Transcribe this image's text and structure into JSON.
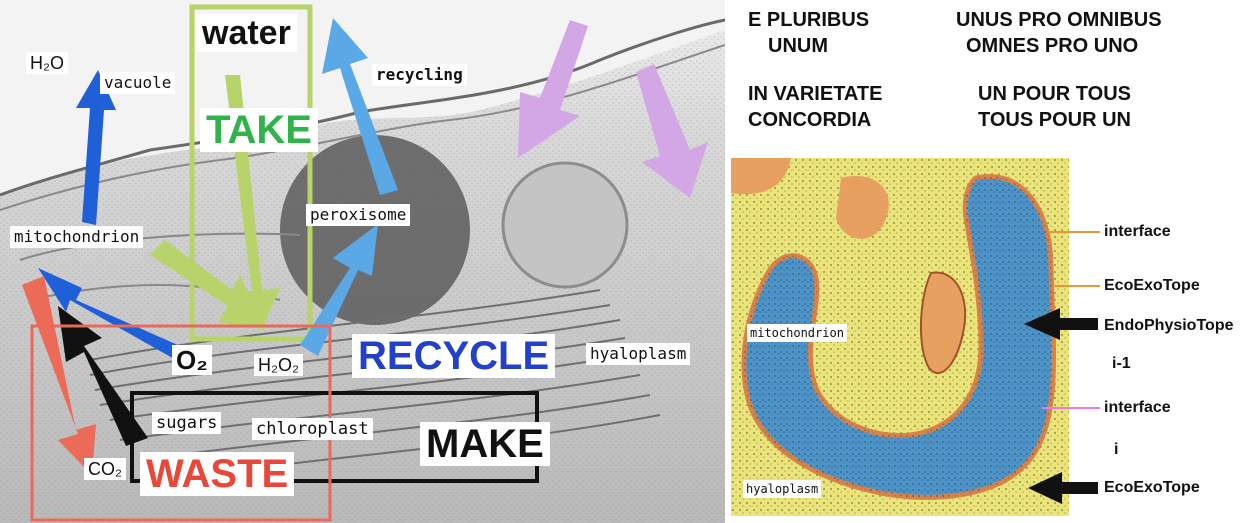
{
  "left_diagram": {
    "labels": {
      "h2o": "H₂O",
      "vacuole": "vacuole",
      "water": "water",
      "recycling": "recycling",
      "take": "TAKE",
      "mitochondrion": "mitochondrion",
      "peroxisome": "peroxisome",
      "o2": "O₂",
      "h2o2": "H₂O₂",
      "recycle": "RECYCLE",
      "hyaloplasm": "hyaloplasm",
      "sugars": "sugars",
      "chloroplast": "chloroplast",
      "make": "MAKE",
      "co2": "CO₂",
      "waste": "WASTE"
    },
    "colors": {
      "take": "#2fb34a",
      "recycle": "#2340c8",
      "waste": "#e8483a",
      "water_box": "#b7d36a",
      "recycle_arrow": "#5aa8e6",
      "dark_blue_arrow": "#1f5fd8",
      "violet_arrow": "#d3a6e6",
      "waste_box": "#e86a5a",
      "make_box": "#111111"
    }
  },
  "mottos": {
    "col1": [
      "E PLURIBUS",
      "UNUM",
      "IN VARIETATE",
      "CONCORDIA"
    ],
    "col2": [
      "UNUS PRO OMNIBUS",
      "OMNES PRO UNO",
      "UN POUR TOUS",
      "TOUS POUR UN"
    ]
  },
  "right_diagram": {
    "image_labels": {
      "mitochondrion": "mitochondrion",
      "hyaloplasm": "hyaloplasm"
    },
    "side_labels": [
      "interface",
      "EcoExoTope",
      "EndoPhysioTope",
      "i-1",
      "interface",
      "i",
      "EcoExoTope"
    ],
    "colors": {
      "interface_top": "#e8963c",
      "interface_lower": "#e67ee0",
      "pointer": "#111111"
    }
  }
}
